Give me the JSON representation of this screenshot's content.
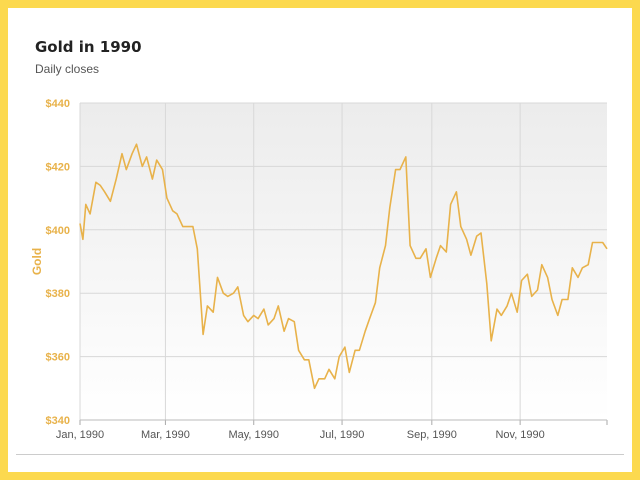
{
  "chart_data": {
    "type": "line",
    "title": "Gold in 1990",
    "subtitle": "Daily closes",
    "ylabel": "Gold",
    "xlabel": "",
    "xlim": [
      "1990-01-01",
      "1990-12-31"
    ],
    "ylim": [
      340,
      440
    ],
    "yticks": [
      340,
      360,
      380,
      400,
      420,
      440
    ],
    "ytick_labels": [
      "$340",
      "$360",
      "$380",
      "$400",
      "$420",
      "$440"
    ],
    "xticks": [
      "1990-01-01",
      "1990-03-01",
      "1990-05-01",
      "1990-07-01",
      "1990-09-01",
      "1990-11-01"
    ],
    "xtick_labels": [
      "Jan, 1990",
      "Mar, 1990",
      "May, 1990",
      "Jul, 1990",
      "Sep, 1990",
      "Nov, 1990"
    ],
    "grid": true,
    "legend": false,
    "colors": {
      "line": "#e8b24a",
      "axis_label": "#e8b24a",
      "plot_bg_top": "#ececec",
      "plot_bg_bottom": "#ffffff",
      "grid": "#d8d8d8"
    },
    "series": [
      {
        "x": [
          "1990-01-01",
          "1990-01-03",
          "1990-01-05",
          "1990-01-08",
          "1990-01-12",
          "1990-01-15",
          "1990-01-18",
          "1990-01-22",
          "1990-01-26",
          "1990-01-30",
          "1990-02-02",
          "1990-02-06",
          "1990-02-09",
          "1990-02-13",
          "1990-02-16",
          "1990-02-20",
          "1990-02-23",
          "1990-02-27",
          "1990-03-02",
          "1990-03-06",
          "1990-03-09",
          "1990-03-13",
          "1990-03-16",
          "1990-03-20",
          "1990-03-23",
          "1990-03-27",
          "1990-03-30",
          "1990-04-03",
          "1990-04-06",
          "1990-04-10",
          "1990-04-13",
          "1990-04-17",
          "1990-04-20",
          "1990-04-24",
          "1990-04-27",
          "1990-05-01",
          "1990-05-04",
          "1990-05-08",
          "1990-05-11",
          "1990-05-15",
          "1990-05-18",
          "1990-05-22",
          "1990-05-25",
          "1990-05-29",
          "1990-06-01",
          "1990-06-05",
          "1990-06-08",
          "1990-06-12",
          "1990-06-15",
          "1990-06-19",
          "1990-06-22",
          "1990-06-26",
          "1990-06-29",
          "1990-07-03",
          "1990-07-06",
          "1990-07-10",
          "1990-07-13",
          "1990-07-17",
          "1990-07-20",
          "1990-07-24",
          "1990-07-27",
          "1990-07-31",
          "1990-08-03",
          "1990-08-07",
          "1990-08-10",
          "1990-08-14",
          "1990-08-17",
          "1990-08-21",
          "1990-08-24",
          "1990-08-28",
          "1990-08-31",
          "1990-09-04",
          "1990-09-07",
          "1990-09-11",
          "1990-09-14",
          "1990-09-18",
          "1990-09-21",
          "1990-09-25",
          "1990-09-28",
          "1990-10-02",
          "1990-10-05",
          "1990-10-09",
          "1990-10-12",
          "1990-10-16",
          "1990-10-19",
          "1990-10-23",
          "1990-10-26",
          "1990-10-30",
          "1990-11-02",
          "1990-11-06",
          "1990-11-09",
          "1990-11-13",
          "1990-11-16",
          "1990-11-20",
          "1990-11-23",
          "1990-11-27",
          "1990-11-30",
          "1990-12-04",
          "1990-12-07",
          "1990-12-11",
          "1990-12-14",
          "1990-12-18",
          "1990-12-21",
          "1990-12-25",
          "1990-12-28",
          "1990-12-31"
        ],
        "values": [
          402,
          397,
          408,
          405,
          415,
          414,
          412,
          409,
          416,
          424,
          419,
          424,
          427,
          420,
          423,
          416,
          422,
          419,
          410,
          406,
          405,
          401,
          401,
          401,
          394,
          367,
          376,
          374,
          385,
          380,
          379,
          380,
          382,
          373,
          371,
          373,
          372,
          375,
          370,
          372,
          376,
          368,
          372,
          371,
          362,
          359,
          359,
          350,
          353,
          353,
          356,
          353,
          360,
          363,
          355,
          362,
          362,
          368,
          372,
          377,
          388,
          395,
          407,
          419,
          419,
          423,
          395,
          391,
          391,
          394,
          385,
          391,
          395,
          393,
          408,
          412,
          401,
          397,
          392,
          398,
          399,
          383,
          365,
          375,
          373,
          376,
          380,
          374,
          384,
          386,
          379,
          381,
          389,
          385,
          378,
          373,
          378,
          378,
          388,
          385,
          388,
          389,
          396,
          396,
          396,
          394
        ]
      }
    ]
  }
}
